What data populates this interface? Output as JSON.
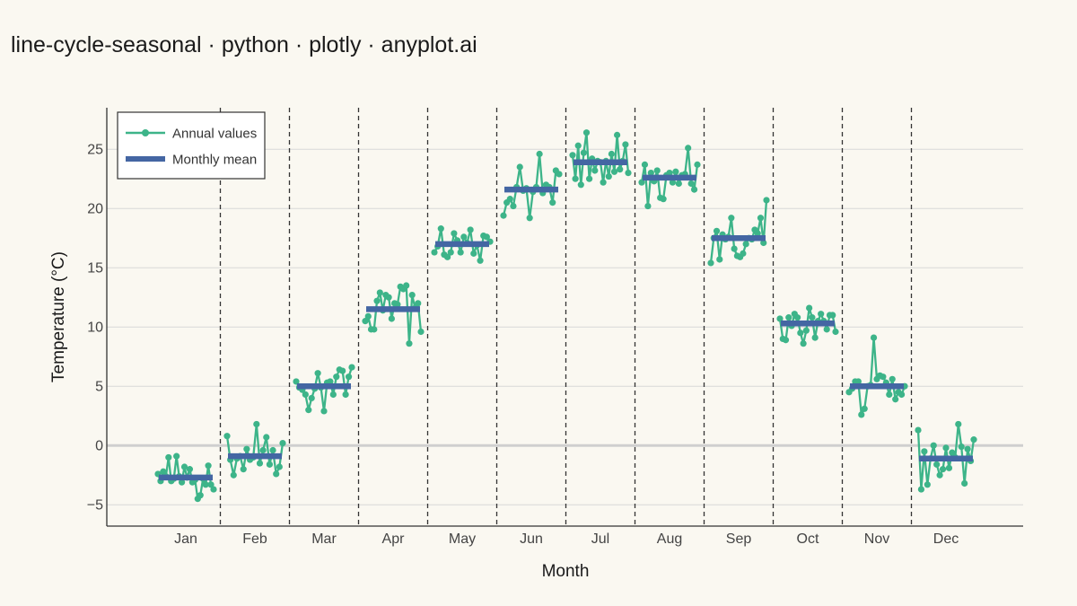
{
  "title": "line-cycle-seasonal · python · plotly · anyplot.ai",
  "chart_data": {
    "type": "line",
    "title": "line-cycle-seasonal · python · plotly · anyplot.ai",
    "xlabel": "Month",
    "ylabel": "Temperature (°C)",
    "categories": [
      "Jan",
      "Feb",
      "Mar",
      "Apr",
      "May",
      "Jun",
      "Jul",
      "Aug",
      "Sep",
      "Oct",
      "Nov",
      "Dec"
    ],
    "ylim": [
      -6.8,
      28.5
    ],
    "yticks": [
      -5,
      0,
      5,
      10,
      15,
      20,
      25
    ],
    "ytick_labels": [
      "−5",
      "0",
      "5",
      "10",
      "15",
      "20",
      "25"
    ],
    "grid": true,
    "legend_position": "top-left",
    "colors": {
      "annual": "#3DB489",
      "mean": "#4466A3",
      "grid": "#D8D8D8",
      "zero_line": "#CFCFCF",
      "separator": "#333333",
      "axis": "#333333",
      "background": "#FAF8F1"
    },
    "series": [
      {
        "name": "Annual values",
        "mode": "lines+markers",
        "values": [
          [
            -2.4,
            -3.0,
            -2.2,
            -2.6,
            -1.0,
            -3.0,
            -2.8,
            -0.9,
            -2.6,
            -3.1,
            -1.8,
            -2.7,
            -2.0,
            -3.1,
            -2.9,
            -4.5,
            -4.2,
            -2.8,
            -3.3,
            -1.7,
            -3.3,
            -3.7
          ],
          [
            0.8,
            -1.2,
            -2.5,
            -1.1,
            -0.9,
            -2.0,
            -0.3,
            -1.2,
            -1.0,
            1.8,
            -1.5,
            -0.4,
            0.7,
            -1.6,
            -0.4,
            -2.4,
            -1.8,
            0.2
          ],
          [
            5.4,
            4.9,
            4.7,
            4.3,
            3.0,
            4.0,
            4.8,
            6.1,
            4.9,
            2.9,
            5.3,
            5.4,
            4.3,
            5.8,
            6.4,
            6.3,
            4.3,
            5.8,
            6.6
          ],
          [
            10.5,
            10.9,
            9.8,
            9.8,
            12.2,
            12.9,
            11.4,
            12.7,
            12.5,
            10.7,
            12.0,
            11.9,
            13.4,
            13.2,
            13.5,
            8.6,
            12.7,
            11.6,
            12.0,
            9.6
          ],
          [
            16.3,
            16.8,
            18.3,
            16.1,
            15.9,
            16.3,
            17.9,
            17.3,
            16.3,
            17.6,
            17.1,
            18.2,
            16.2,
            16.9,
            15.6,
            17.7,
            17.6,
            17.2
          ],
          [
            19.4,
            20.5,
            20.8,
            20.2,
            21.8,
            23.5,
            21.5,
            21.7,
            19.2,
            21.4,
            21.8,
            24.6,
            21.3,
            22.0,
            21.8,
            20.5,
            23.2,
            22.9
          ],
          [
            24.5,
            22.5,
            25.3,
            22.0,
            24.7,
            26.4,
            22.5,
            24.2,
            23.2,
            24.0,
            23.9,
            22.2,
            24.0,
            22.7,
            24.6,
            23.1,
            26.2,
            23.3,
            24.0,
            25.4,
            23.0
          ],
          [
            22.2,
            23.7,
            20.2,
            23.0,
            22.3,
            23.2,
            20.9,
            20.8,
            22.8,
            23.0,
            22.2,
            23.1,
            22.1,
            22.8,
            22.9,
            25.1,
            22.1,
            21.6,
            23.7
          ],
          [
            15.4,
            17.5,
            18.1,
            15.7,
            17.8,
            17.4,
            17.6,
            19.2,
            16.6,
            16.0,
            15.9,
            16.2,
            17.0,
            17.5,
            17.4,
            18.2,
            17.9,
            19.2,
            17.1,
            20.7
          ],
          [
            10.7,
            9.0,
            8.9,
            10.8,
            10.1,
            11.1,
            10.8,
            9.5,
            8.6,
            9.7,
            11.6,
            10.8,
            9.1,
            10.5,
            11.1,
            10.5,
            9.8,
            11.0,
            11.0,
            9.6
          ],
          [
            4.5,
            4.8,
            5.4,
            5.4,
            2.6,
            3.1,
            5.0,
            5.1,
            9.1,
            5.6,
            5.9,
            5.8,
            5.3,
            4.3,
            5.6,
            3.9,
            4.5,
            4.3,
            5.0
          ],
          [
            1.3,
            -3.7,
            -0.5,
            -3.3,
            -1.1,
            0.0,
            -1.6,
            -2.5,
            -2.0,
            -0.2,
            -1.9,
            -0.6,
            -1.0,
            1.8,
            -0.1,
            -3.2,
            -0.3,
            -1.3,
            0.5
          ]
        ]
      },
      {
        "name": "Monthly mean",
        "mode": "lines",
        "values": [
          -2.7,
          -0.9,
          5.0,
          11.5,
          17.0,
          21.6,
          23.9,
          22.6,
          17.5,
          10.3,
          5.0,
          -1.1
        ]
      }
    ]
  }
}
